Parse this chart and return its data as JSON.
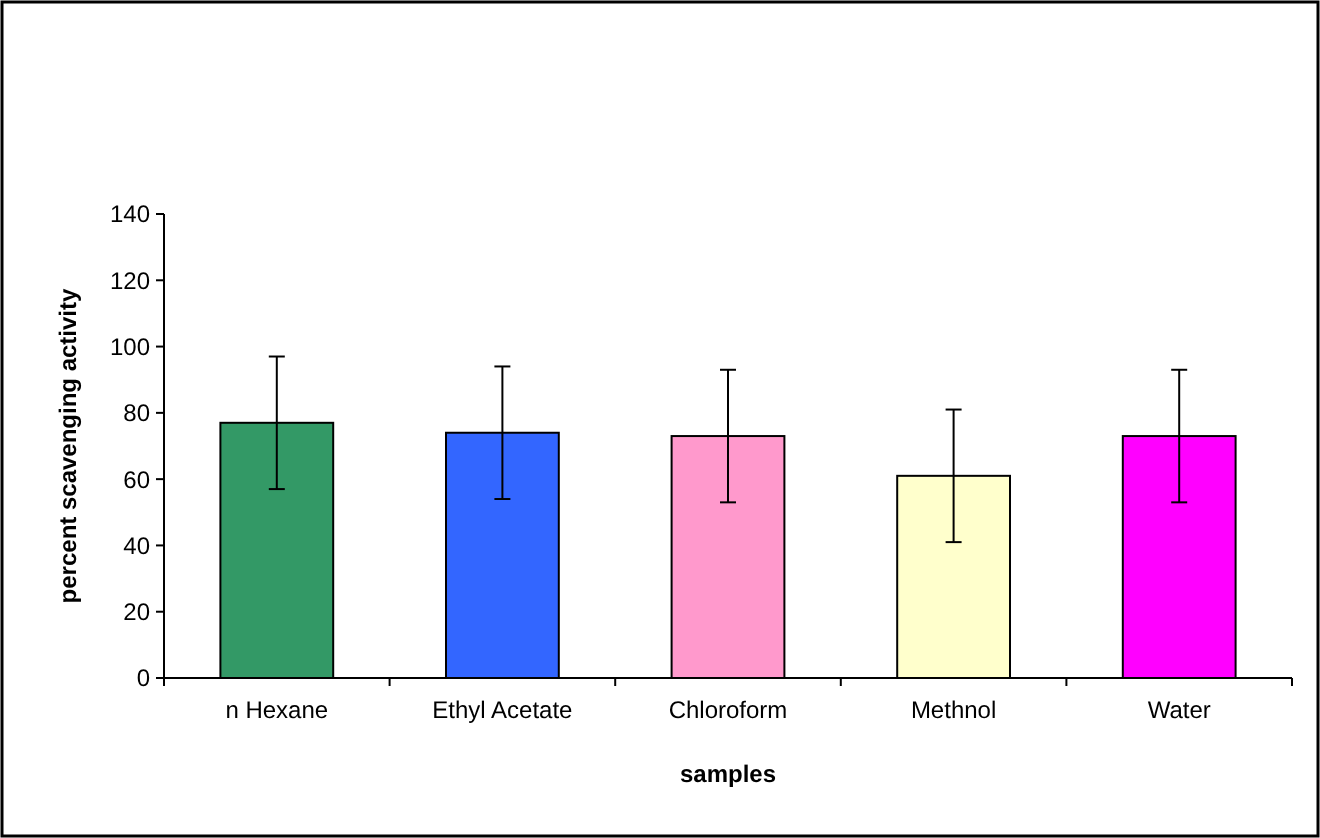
{
  "chart_data": {
    "type": "bar",
    "xlabel": "samples",
    "ylabel": "percent scavenging activity",
    "categories": [
      "n Hexane",
      "Ethyl Acetate",
      "Chloroform",
      "Methnol",
      "Water"
    ],
    "values": [
      77,
      74,
      73,
      61,
      73
    ],
    "colors": [
      "#339966",
      "#3366ff",
      "#ff99cc",
      "#ffffcc",
      "#ff00ff"
    ],
    "errors": [
      20,
      20,
      20,
      20,
      20
    ],
    "ylim": [
      0,
      140
    ],
    "yticks": [
      0,
      20,
      40,
      60,
      80,
      100,
      120,
      140
    ],
    "grid": false
  }
}
